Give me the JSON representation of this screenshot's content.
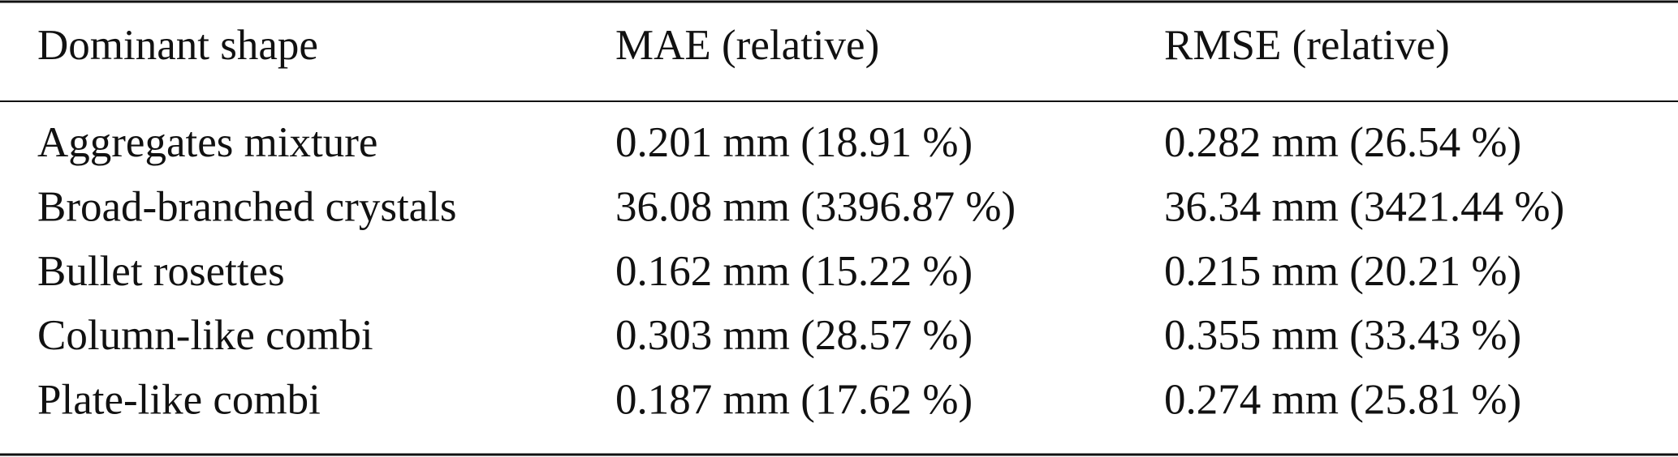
{
  "table": {
    "header": [
      "Dominant shape",
      "MAE (relative)",
      "RMSE (relative)"
    ],
    "rows": [
      [
        "Aggregates mixture",
        "0.201 mm (18.91 %)",
        "0.282 mm (26.54 %)"
      ],
      [
        "Broad-branched crystals",
        "36.08 mm (3396.87 %)",
        "36.34 mm (3421.44 %)"
      ],
      [
        "Bullet rosettes",
        "0.162 mm (15.22 %)",
        "0.215 mm (20.21 %)"
      ],
      [
        "Column-like combi",
        "0.303 mm (28.57 %)",
        "0.355 mm (33.43 %)"
      ],
      [
        "Plate-like combi",
        "0.187 mm (17.62 %)",
        "0.274 mm (25.81 %)"
      ]
    ]
  }
}
